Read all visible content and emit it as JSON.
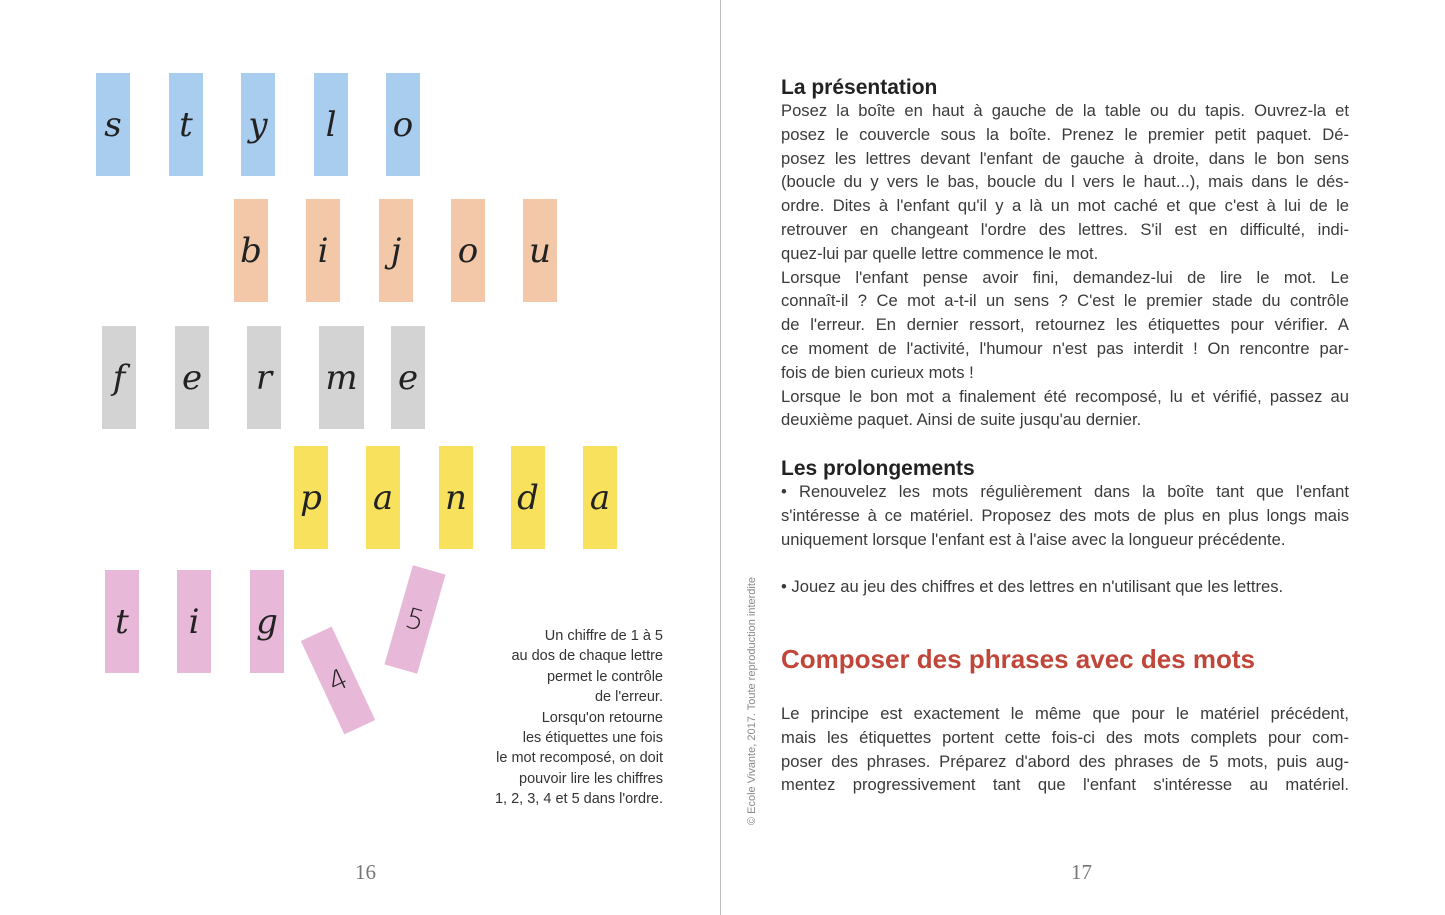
{
  "colors": {
    "blue": "#a9cdef",
    "orange": "#f2c8a8",
    "grey": "#d3d3d3",
    "yellow": "#f8e15c",
    "pink": "#e8b8d8",
    "accent": "#c0463a"
  },
  "left_page": {
    "words": [
      {
        "word": "stylo",
        "color": "#a9cdef",
        "letters": [
          "s",
          "t",
          "y",
          "l",
          "o"
        ]
      },
      {
        "word": "bijou",
        "color": "#f2c8a8",
        "letters": [
          "b",
          "i",
          "j",
          "o",
          "u"
        ]
      },
      {
        "word": "ferme",
        "color": "#d3d3d3",
        "letters": [
          "f",
          "e",
          "r",
          "m",
          "e"
        ]
      },
      {
        "word": "panda",
        "color": "#f8e15c",
        "letters": [
          "p",
          "a",
          "n",
          "d",
          "a"
        ]
      },
      {
        "word": "tig",
        "color": "#e8b8d8",
        "letters": [
          "t",
          "i",
          "g"
        ]
      }
    ],
    "flipped_cards": [
      "4",
      "5"
    ],
    "caption": [
      "Un chiffre de 1 à 5",
      "au dos de chaque lettre",
      "permet le contrôle",
      "de l'erreur.",
      "Lorsqu'on retourne",
      "les étiquettes une fois",
      "le mot recomposé, on doit",
      "pouvoir lire les chiffres",
      "1, 2, 3, 4 et 5 dans l'ordre."
    ],
    "page_number": "16"
  },
  "copyright": "© Ecole Vivante, 2017. Toute reproduction interdite",
  "right_page": {
    "presentation": {
      "title": "La présentation",
      "lines": [
        "Posez la boîte en haut à gauche de la table ou du tapis. Ouvrez-la et",
        "posez le couvercle sous la boîte. Prenez le premier petit paquet. Dé-",
        "posez les lettres devant l'enfant de gauche à droite, dans le bon sens",
        "(boucle du y vers le bas, boucle du l vers le haut...), mais dans le dés-",
        "ordre. Dites à l'enfant qu'il y a là un mot caché et que c'est à lui de le",
        "retrouver en changeant l'ordre des lettres. S'il est en difficulté, indi-",
        "quez-lui par quelle lettre commence le mot.",
        "Lorsque l'enfant pense avoir fini, demandez-lui de lire le mot. Le",
        "connaît-il ? Ce mot a-t-il un sens ? C'est le premier stade du contrôle",
        "de l'erreur. En dernier ressort, retournez les étiquettes pour vérifier. A",
        "ce moment de l'activité, l'humour n'est pas interdit ! On rencontre par-",
        "fois de bien curieux mots !",
        "Lorsque le bon mot a finalement été recomposé, lu et vérifié, passez au",
        "deuxième paquet. Ainsi de suite jusqu'au dernier."
      ]
    },
    "prolongements": {
      "title": "Les prolongements",
      "lines": [
        "• Renouvelez les mots régulièrement dans la boîte tant que l'enfant",
        "s'intéresse à ce matériel. Proposez des mots de plus en plus longs mais",
        "uniquement lorsque l'enfant est à l'aise avec la longueur précédente."
      ],
      "bullet2": "• Jouez au jeu des chiffres et des lettres en n'utilisant que les lettres."
    },
    "phrases": {
      "title": "Composer des phrases avec des mots",
      "lines": [
        "Le principe est exactement le même que pour le matériel précédent,",
        "mais les étiquettes portent cette fois-ci des mots complets pour com-",
        "poser des phrases. Préparez d'abord des phrases de 5 mots, puis aug-",
        "mentez progressivement tant que l'enfant s'intéresse au matériel."
      ]
    },
    "page_number": "17"
  }
}
